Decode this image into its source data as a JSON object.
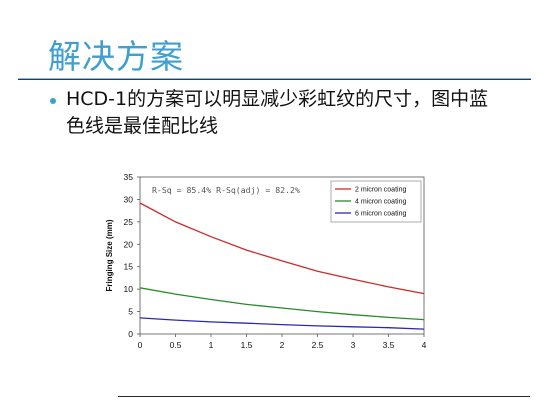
{
  "slide": {
    "title": "解决方案",
    "bullet_text": "HCD-1的方案可以明显减少彩虹纹的尺寸，图中蓝色线是最佳配比线"
  },
  "chart_data": {
    "type": "line",
    "ylabel": "Fringing Size (mm)",
    "xlabel": "",
    "xlim": [
      0,
      4
    ],
    "ylim": [
      0,
      35
    ],
    "x_ticks": [
      0,
      0.5,
      1,
      1.5,
      2,
      2.5,
      3,
      3.5,
      4
    ],
    "y_ticks": [
      0,
      5,
      10,
      15,
      20,
      25,
      30,
      35
    ],
    "x_tick_labels": [
      "0",
      "0.5",
      "1",
      "1.5",
      "2",
      "2.5",
      "3",
      "3.5",
      "4"
    ],
    "y_tick_labels": [
      "0",
      "5",
      "10",
      "15",
      "20",
      "25",
      "30",
      "35"
    ],
    "grid": false,
    "legend_position": "top-right",
    "annotation": "R-Sq = 85.4%    R-Sq(adj) = 82.2%",
    "colors": {
      "2 micron coating": "#cc2a2a",
      "4 micron coating": "#2a8a2a",
      "6 micron coating": "#2a2ab0"
    },
    "x": [
      0,
      0.5,
      1,
      1.5,
      2,
      2.5,
      3,
      3.5,
      4
    ],
    "series": [
      {
        "name": "2 micron coating",
        "values": [
          29.2,
          25.0,
          21.7,
          18.7,
          16.3,
          14.0,
          12.2,
          10.5,
          9.0
        ]
      },
      {
        "name": "4 micron coating",
        "values": [
          10.3,
          8.9,
          7.7,
          6.6,
          5.8,
          5.0,
          4.3,
          3.7,
          3.2
        ]
      },
      {
        "name": "6 micron coating",
        "values": [
          3.6,
          3.1,
          2.7,
          2.4,
          2.1,
          1.8,
          1.6,
          1.4,
          1.1
        ]
      }
    ]
  }
}
